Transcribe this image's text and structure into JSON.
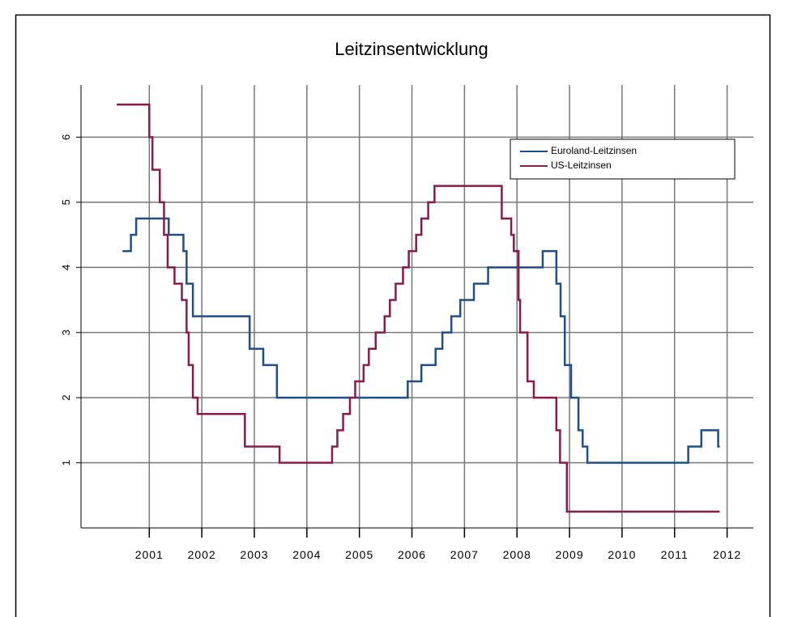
{
  "chart_data": {
    "type": "line",
    "step": "post",
    "title": "Leitzinsentwicklung",
    "xlim": [
      1999.7,
      2012.5
    ],
    "ylim": [
      0,
      6.8
    ],
    "xticks": [
      2001,
      2002,
      2003,
      2004,
      2005,
      2006,
      2007,
      2008,
      2009,
      2010,
      2011,
      2012
    ],
    "yticks": [
      1,
      2,
      3,
      4,
      5,
      6
    ],
    "grid": true,
    "legend": "upper right",
    "series": [
      {
        "name": "Euroland-Leitzinsen",
        "color": "#1f4e8a",
        "x": [
          2000.49,
          2000.65,
          2000.75,
          2001.37,
          2001.65,
          2001.71,
          2001.83,
          2002.91,
          2003.17,
          2003.43,
          2005.92,
          2006.18,
          2006.45,
          2006.58,
          2006.75,
          2006.92,
          2007.18,
          2007.45,
          2008.49,
          2008.75,
          2008.83,
          2008.91,
          2009.03,
          2009.17,
          2009.25,
          2009.34,
          2011.26,
          2011.51,
          2011.83,
          2011.86
        ],
        "values": [
          4.25,
          4.5,
          4.75,
          4.5,
          4.25,
          3.75,
          3.25,
          2.75,
          2.5,
          2.0,
          2.25,
          2.5,
          2.75,
          3.0,
          3.25,
          3.5,
          3.75,
          4.0,
          4.25,
          3.75,
          3.25,
          2.5,
          2.0,
          1.5,
          1.25,
          1.0,
          1.25,
          1.5,
          1.25,
          1.25
        ]
      },
      {
        "name": "US-Leitzinsen",
        "color": "#8b1a4a",
        "x": [
          2000.38,
          2001.0,
          2001.06,
          2001.2,
          2001.28,
          2001.35,
          2001.48,
          2001.62,
          2001.71,
          2001.75,
          2001.83,
          2001.92,
          2002.82,
          2003.48,
          2004.48,
          2004.58,
          2004.69,
          2004.82,
          2004.92,
          2005.08,
          2005.18,
          2005.31,
          2005.48,
          2005.58,
          2005.69,
          2005.83,
          2005.94,
          2006.08,
          2006.18,
          2006.31,
          2006.43,
          2007.71,
          2007.89,
          2007.94,
          2008.03,
          2008.06,
          2008.2,
          2008.32,
          2008.75,
          2008.82,
          2008.95,
          2011.86
        ],
        "values": [
          6.5,
          6.0,
          5.5,
          5.0,
          4.5,
          4.0,
          3.75,
          3.5,
          3.0,
          2.5,
          2.0,
          1.75,
          1.25,
          1.0,
          1.25,
          1.5,
          1.75,
          2.0,
          2.25,
          2.5,
          2.75,
          3.0,
          3.25,
          3.5,
          3.75,
          4.0,
          4.25,
          4.5,
          4.75,
          5.0,
          5.25,
          4.75,
          4.5,
          4.25,
          3.5,
          3.0,
          2.25,
          2.0,
          1.5,
          1.0,
          0.25,
          0.25
        ]
      }
    ]
  }
}
